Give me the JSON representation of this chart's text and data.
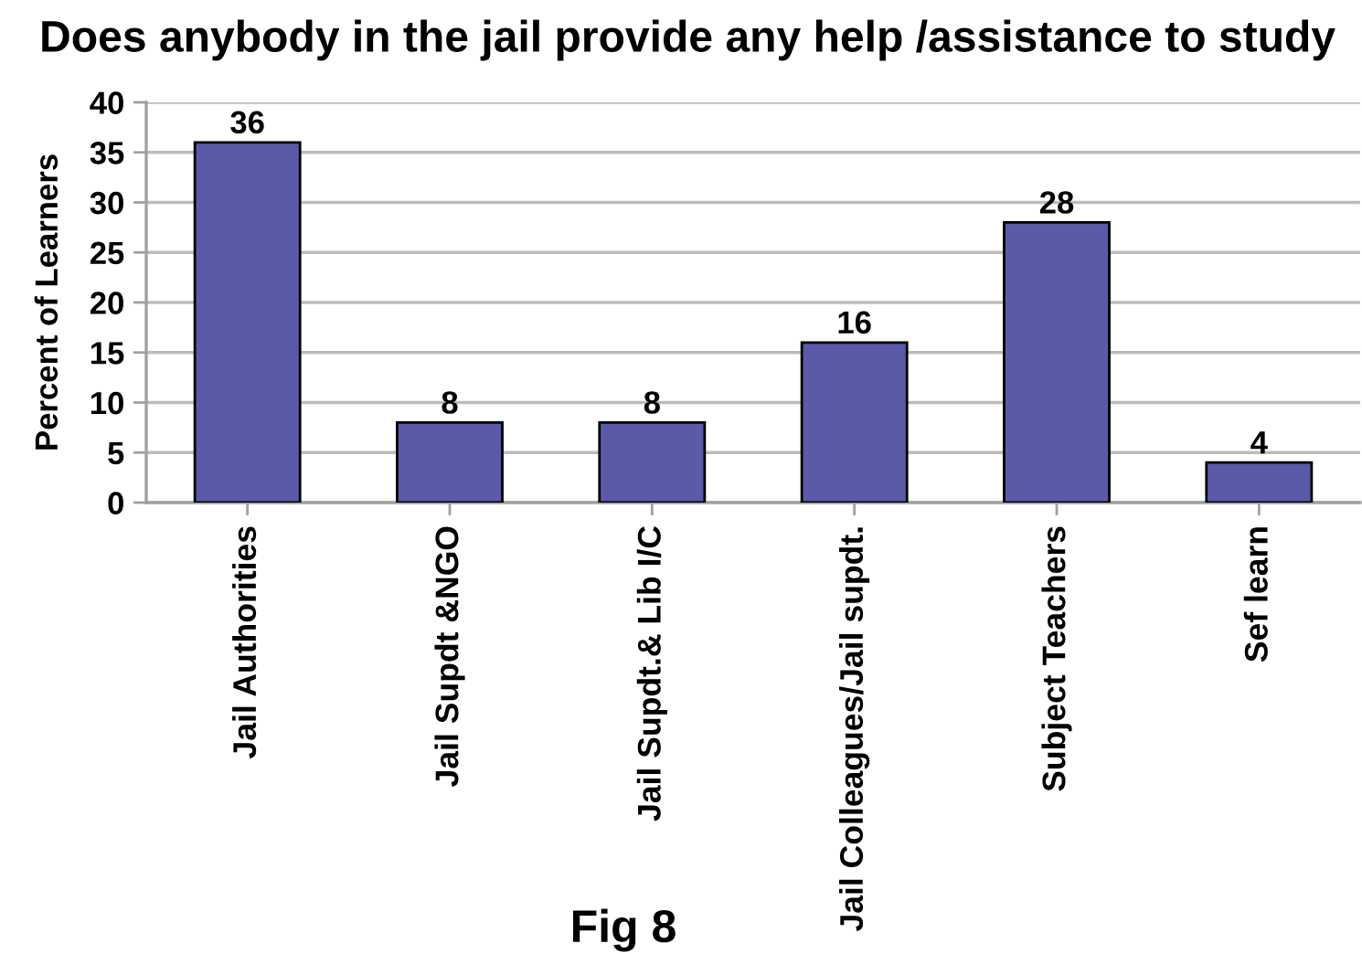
{
  "chart_data": {
    "type": "bar",
    "title": "Does anybody in the jail provide any help /assistance to study",
    "ylabel": "Percent of Learners",
    "categories": [
      "Jail Authorities",
      "Jail Supdt &NGO",
      "Jail Supdt.& Lib I/C",
      "Jail Colleagues/Jail supdt.",
      "Subject Teachers",
      "Sef learn"
    ],
    "values": [
      36,
      8,
      8,
      16,
      28,
      4
    ],
    "color": "#5a5aa8",
    "ylim": [
      0,
      40
    ],
    "yticks": [
      0,
      5,
      10,
      15,
      20,
      25,
      30,
      35,
      40
    ],
    "grid": "y",
    "data_labels": true,
    "legend": false,
    "annotations": [
      "Fig 8"
    ]
  }
}
